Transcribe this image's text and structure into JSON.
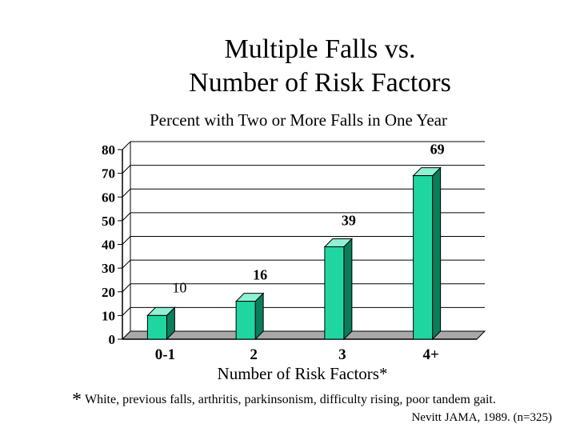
{
  "title_line1": "Multiple Falls vs.",
  "title_line2": "Number of Risk Factors",
  "footnote": "White, previous falls, arthritis, parkinsonism, difficulty rising, poor tandem gait.",
  "footnote_marker": "*",
  "citation": "Nevitt JAMA, 1989. (n=325)",
  "chart_data": {
    "type": "bar",
    "title": "Percent with Two or More Falls in One Year",
    "xlabel": "Number of Risk Factors*",
    "ylabel": "",
    "categories": [
      "0-1",
      "2",
      "3",
      "4+"
    ],
    "values": [
      10,
      16,
      39,
      69
    ],
    "data_labels": [
      "10",
      "16",
      "39",
      "69"
    ],
    "ylim": [
      0,
      80
    ],
    "yticks": [
      "0",
      "10",
      "20",
      "30",
      "40",
      "50",
      "60",
      "70",
      "80"
    ],
    "grid": true,
    "style": "3d-bar",
    "colors": {
      "bar_front": "#1fd6a0",
      "bar_side": "#0a7d5b",
      "bar_top": "#8ff0d2",
      "floor": "#a8a8a8"
    }
  }
}
